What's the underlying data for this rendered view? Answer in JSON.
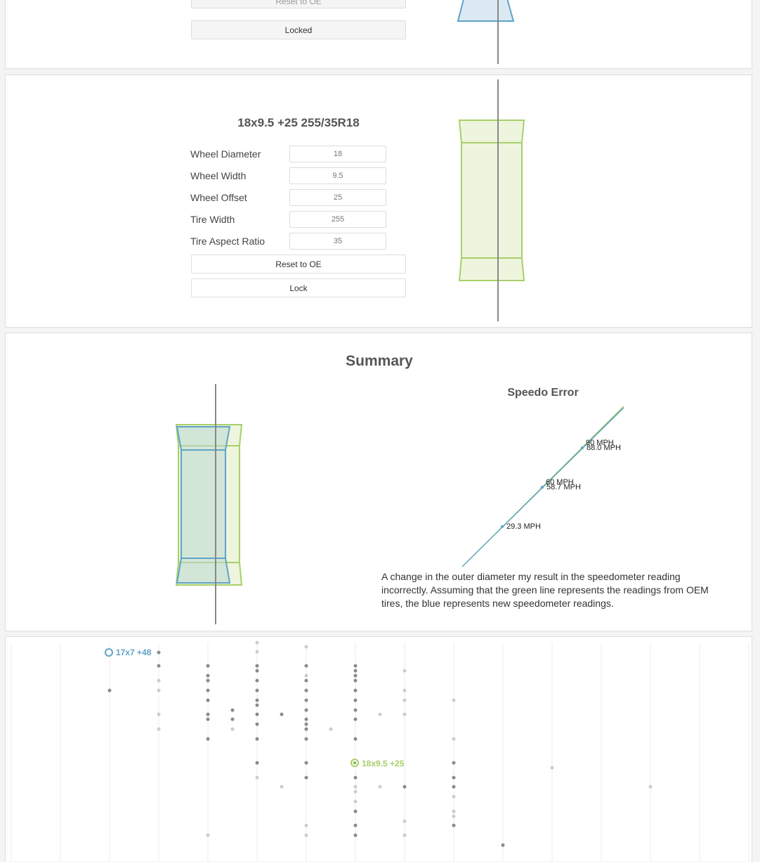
{
  "panel1": {
    "reset_label": "Reset to OE",
    "lock_label": "Locked"
  },
  "panel2": {
    "title": "18x9.5 +25 255/35R18",
    "fields": [
      {
        "label": "Wheel Diameter",
        "value": "18"
      },
      {
        "label": "Wheel Width",
        "value": "9.5"
      },
      {
        "label": "Wheel Offset",
        "value": "25"
      },
      {
        "label": "Tire Width",
        "value": "255"
      },
      {
        "label": "Tire Aspect Ratio",
        "value": "35"
      }
    ],
    "reset_label": "Reset to OE",
    "lock_label": "Lock"
  },
  "summary": {
    "title": "Summary",
    "speedo_title": "Speedo Error",
    "speedo_labels": {
      "l1": "29.3 MPH",
      "l2": "58.7 MPH",
      "l3": "88.0 MPH",
      "l2_overlap": "60 MPH",
      "l3_overlap": "90 MPH"
    },
    "description": "A change in the outer diameter my result in the speedometer reading incorrectly. Assuming that the green line represents the readings from OEM tires, the blue represents new speedometer readings."
  },
  "scatter": {
    "original_label": "17x7 +48",
    "current_label": "18x9.5 +25"
  },
  "colors": {
    "blue": "#5fa3c8",
    "green": "#a8cf6a",
    "gray_dot": "#8a8a8a",
    "light_dot": "#cccccc"
  }
}
